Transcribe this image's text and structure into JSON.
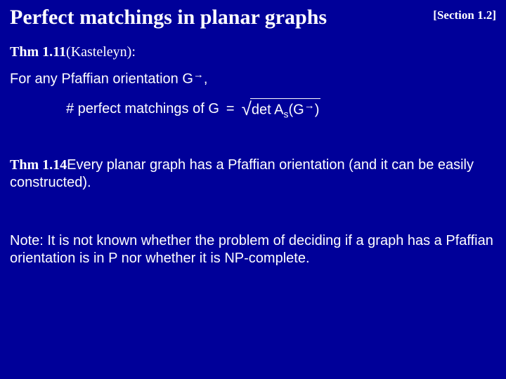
{
  "colors": {
    "background": "#000099",
    "text": "#ffffff"
  },
  "fonts": {
    "heading_family": "Comic Sans MS",
    "body_family": "Verdana",
    "title_size_pt": 30,
    "section_ref_size_pt": 17,
    "body_size_pt": 20
  },
  "header": {
    "title": "Perfect matchings in planar graphs",
    "section_ref": "[Section 1.2]"
  },
  "thm1": {
    "label": "Thm 1.11",
    "attribution": "(Kasteleyn):",
    "premise_prefix": "For any Pfaffian orientation G",
    "premise_arrow": "→",
    "premise_suffix": ","
  },
  "equation": {
    "lhs": "# perfect matchings of G",
    "eq": "=",
    "det": "det A",
    "A_sub": "s",
    "G_open": "(G",
    "arrow": "→",
    "G_close": ")"
  },
  "thm2": {
    "label": "Thm 1.14",
    "text": "Every planar graph has a Pfaffian orientation (and it can be easily constructed)."
  },
  "note": {
    "text": "Note: It is not known whether the problem of deciding if a graph has a Pfaffian orientation is in P nor whether it is NP-complete."
  }
}
